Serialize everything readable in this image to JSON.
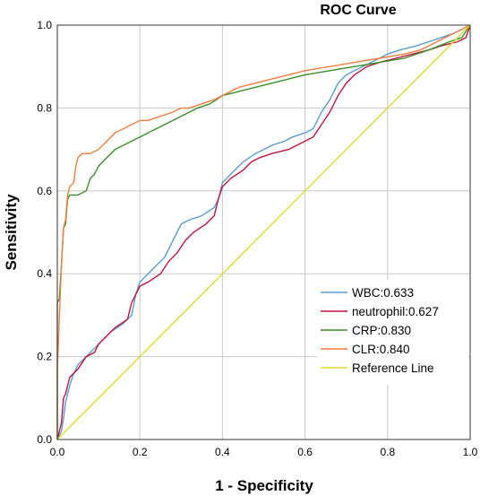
{
  "chart_data": {
    "type": "line",
    "title": "ROC Curve",
    "xlabel": "1 - Specificity",
    "ylabel": "Sensitivity",
    "xlim": [
      0,
      1
    ],
    "ylim": [
      0,
      1
    ],
    "x_ticks": [
      "0.0",
      "0.2",
      "0.4",
      "0.6",
      "0.8",
      "1.0"
    ],
    "y_ticks": [
      "0.0",
      "0.2",
      "0.4",
      "0.6",
      "0.8",
      "1.0"
    ],
    "grid": true,
    "legend_position": "bottom-right",
    "series": [
      {
        "name": "WBC:0.633",
        "color": "#5b9bd5",
        "points": [
          [
            0,
            0
          ],
          [
            0.01,
            0.02
          ],
          [
            0.015,
            0.05
          ],
          [
            0.02,
            0.09
          ],
          [
            0.03,
            0.13
          ],
          [
            0.04,
            0.16
          ],
          [
            0.05,
            0.18
          ],
          [
            0.07,
            0.2
          ],
          [
            0.09,
            0.22
          ],
          [
            0.11,
            0.24
          ],
          [
            0.13,
            0.26
          ],
          [
            0.16,
            0.28
          ],
          [
            0.18,
            0.3
          ],
          [
            0.19,
            0.35
          ],
          [
            0.2,
            0.38
          ],
          [
            0.22,
            0.4
          ],
          [
            0.24,
            0.42
          ],
          [
            0.26,
            0.44
          ],
          [
            0.28,
            0.48
          ],
          [
            0.3,
            0.52
          ],
          [
            0.32,
            0.53
          ],
          [
            0.35,
            0.54
          ],
          [
            0.38,
            0.56
          ],
          [
            0.39,
            0.58
          ],
          [
            0.4,
            0.62
          ],
          [
            0.42,
            0.64
          ],
          [
            0.45,
            0.67
          ],
          [
            0.48,
            0.69
          ],
          [
            0.5,
            0.7
          ],
          [
            0.52,
            0.71
          ],
          [
            0.55,
            0.72
          ],
          [
            0.57,
            0.73
          ],
          [
            0.6,
            0.74
          ],
          [
            0.62,
            0.75
          ],
          [
            0.64,
            0.79
          ],
          [
            0.66,
            0.82
          ],
          [
            0.68,
            0.86
          ],
          [
            0.7,
            0.88
          ],
          [
            0.72,
            0.89
          ],
          [
            0.74,
            0.9
          ],
          [
            0.76,
            0.91
          ],
          [
            0.8,
            0.93
          ],
          [
            0.83,
            0.94
          ],
          [
            0.87,
            0.95
          ],
          [
            0.9,
            0.96
          ],
          [
            0.93,
            0.97
          ],
          [
            0.96,
            0.98
          ],
          [
            0.98,
            0.99
          ],
          [
            1,
            1
          ]
        ]
      },
      {
        "name": "neutrophil:0.627",
        "color": "#c0143c",
        "points": [
          [
            0,
            0
          ],
          [
            0.01,
            0.04
          ],
          [
            0.015,
            0.1
          ],
          [
            0.02,
            0.11
          ],
          [
            0.03,
            0.15
          ],
          [
            0.05,
            0.17
          ],
          [
            0.07,
            0.2
          ],
          [
            0.09,
            0.21
          ],
          [
            0.1,
            0.23
          ],
          [
            0.12,
            0.25
          ],
          [
            0.14,
            0.27
          ],
          [
            0.17,
            0.29
          ],
          [
            0.18,
            0.33
          ],
          [
            0.2,
            0.37
          ],
          [
            0.22,
            0.38
          ],
          [
            0.25,
            0.4
          ],
          [
            0.27,
            0.43
          ],
          [
            0.29,
            0.45
          ],
          [
            0.31,
            0.48
          ],
          [
            0.33,
            0.5
          ],
          [
            0.36,
            0.52
          ],
          [
            0.38,
            0.54
          ],
          [
            0.39,
            0.58
          ],
          [
            0.4,
            0.61
          ],
          [
            0.42,
            0.63
          ],
          [
            0.45,
            0.65
          ],
          [
            0.47,
            0.67
          ],
          [
            0.49,
            0.68
          ],
          [
            0.52,
            0.69
          ],
          [
            0.56,
            0.7
          ],
          [
            0.58,
            0.71
          ],
          [
            0.6,
            0.72
          ],
          [
            0.62,
            0.73
          ],
          [
            0.64,
            0.76
          ],
          [
            0.66,
            0.79
          ],
          [
            0.68,
            0.83
          ],
          [
            0.7,
            0.86
          ],
          [
            0.72,
            0.88
          ],
          [
            0.75,
            0.9
          ],
          [
            0.78,
            0.91
          ],
          [
            0.82,
            0.92
          ],
          [
            0.86,
            0.93
          ],
          [
            0.9,
            0.94
          ],
          [
            0.93,
            0.95
          ],
          [
            0.97,
            0.96
          ],
          [
            0.99,
            0.97
          ],
          [
            1,
            1
          ]
        ]
      },
      {
        "name": "CRP:0.830",
        "color": "#3a8f2c",
        "points": [
          [
            0,
            0
          ],
          [
            0,
            0.33
          ],
          [
            0.005,
            0.34
          ],
          [
            0.01,
            0.42
          ],
          [
            0.015,
            0.51
          ],
          [
            0.02,
            0.52
          ],
          [
            0.025,
            0.58
          ],
          [
            0.03,
            0.59
          ],
          [
            0.05,
            0.59
          ],
          [
            0.07,
            0.6
          ],
          [
            0.08,
            0.63
          ],
          [
            0.09,
            0.64
          ],
          [
            0.1,
            0.66
          ],
          [
            0.12,
            0.68
          ],
          [
            0.14,
            0.7
          ],
          [
            0.16,
            0.71
          ],
          [
            0.18,
            0.72
          ],
          [
            0.2,
            0.73
          ],
          [
            0.22,
            0.74
          ],
          [
            0.24,
            0.75
          ],
          [
            0.26,
            0.76
          ],
          [
            0.28,
            0.77
          ],
          [
            0.3,
            0.78
          ],
          [
            0.32,
            0.79
          ],
          [
            0.34,
            0.8
          ],
          [
            0.37,
            0.81
          ],
          [
            0.4,
            0.83
          ],
          [
            0.44,
            0.84
          ],
          [
            0.48,
            0.85
          ],
          [
            0.52,
            0.86
          ],
          [
            0.56,
            0.87
          ],
          [
            0.6,
            0.88
          ],
          [
            0.66,
            0.89
          ],
          [
            0.72,
            0.9
          ],
          [
            0.78,
            0.91
          ],
          [
            0.84,
            0.92
          ],
          [
            0.9,
            0.94
          ],
          [
            0.95,
            0.96
          ],
          [
            0.98,
            0.97
          ],
          [
            1,
            1
          ]
        ]
      },
      {
        "name": "CLR:0.840",
        "color": "#f47c3c",
        "points": [
          [
            0,
            0
          ],
          [
            0,
            0.17
          ],
          [
            0.01,
            0.42
          ],
          [
            0.015,
            0.51
          ],
          [
            0.02,
            0.53
          ],
          [
            0.025,
            0.59
          ],
          [
            0.03,
            0.61
          ],
          [
            0.04,
            0.62
          ],
          [
            0.045,
            0.66
          ],
          [
            0.05,
            0.68
          ],
          [
            0.06,
            0.69
          ],
          [
            0.08,
            0.69
          ],
          [
            0.1,
            0.7
          ],
          [
            0.12,
            0.72
          ],
          [
            0.14,
            0.74
          ],
          [
            0.16,
            0.75
          ],
          [
            0.18,
            0.76
          ],
          [
            0.2,
            0.77
          ],
          [
            0.22,
            0.77
          ],
          [
            0.25,
            0.78
          ],
          [
            0.28,
            0.79
          ],
          [
            0.3,
            0.8
          ],
          [
            0.32,
            0.8
          ],
          [
            0.35,
            0.81
          ],
          [
            0.38,
            0.82
          ],
          [
            0.4,
            0.83
          ],
          [
            0.44,
            0.85
          ],
          [
            0.48,
            0.86
          ],
          [
            0.52,
            0.87
          ],
          [
            0.56,
            0.88
          ],
          [
            0.6,
            0.89
          ],
          [
            0.66,
            0.9
          ],
          [
            0.72,
            0.91
          ],
          [
            0.78,
            0.92
          ],
          [
            0.84,
            0.93
          ],
          [
            0.88,
            0.94
          ],
          [
            0.92,
            0.96
          ],
          [
            0.96,
            0.98
          ],
          [
            0.98,
            0.99
          ],
          [
            1,
            1
          ]
        ]
      },
      {
        "name": "Reference Line",
        "color": "#e6d82a",
        "points": [
          [
            0,
            0
          ],
          [
            1,
            1
          ]
        ]
      }
    ]
  }
}
